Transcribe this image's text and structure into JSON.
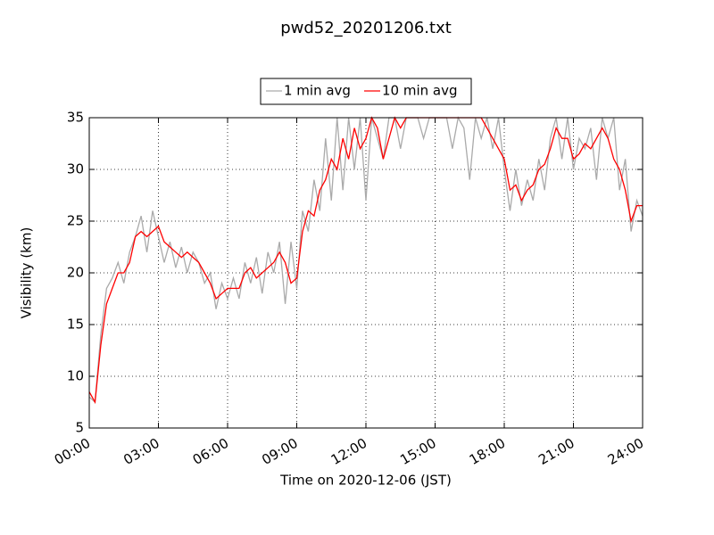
{
  "chart_data": {
    "type": "line",
    "title": "pwd52_20201206.txt",
    "x_label": "Time on 2020-12-06 (JST)",
    "y_label": "Visibility (km)",
    "x": [
      0,
      0.25,
      0.5,
      0.75,
      1,
      1.25,
      1.5,
      1.75,
      2,
      2.25,
      2.5,
      2.75,
      3,
      3.25,
      3.5,
      3.75,
      4,
      4.25,
      4.5,
      4.75,
      5,
      5.25,
      5.5,
      5.75,
      6,
      6.25,
      6.5,
      6.75,
      7,
      7.25,
      7.5,
      7.75,
      8,
      8.25,
      8.5,
      8.75,
      9,
      9.25,
      9.5,
      9.75,
      10,
      10.25,
      10.5,
      10.75,
      11,
      11.25,
      11.5,
      11.75,
      12,
      12.25,
      12.5,
      12.75,
      13,
      13.25,
      13.5,
      13.75,
      14,
      14.25,
      14.5,
      14.75,
      15,
      15.25,
      15.5,
      15.75,
      16,
      16.25,
      16.5,
      16.75,
      17,
      17.25,
      17.5,
      17.75,
      18,
      18.25,
      18.5,
      18.75,
      19,
      19.25,
      19.5,
      19.75,
      20,
      20.25,
      20.5,
      20.75,
      21,
      21.25,
      21.5,
      21.75,
      22,
      22.25,
      22.5,
      22.75,
      23,
      23.25,
      23.5,
      23.75,
      24
    ],
    "series": [
      {
        "name": "1 min avg",
        "color": "#aaaaaa",
        "values": [
          8,
          7.5,
          14,
          18.5,
          19.5,
          21,
          19,
          22,
          23.5,
          25.5,
          22,
          26,
          23.5,
          21,
          23,
          20.5,
          22.5,
          20,
          22,
          21,
          19,
          20,
          16.5,
          19,
          17.5,
          19.5,
          17.5,
          21,
          19,
          21.5,
          18,
          22,
          20,
          23,
          17,
          23,
          18.5,
          26,
          24,
          29,
          26,
          33,
          27,
          35,
          28,
          35,
          30,
          35,
          27,
          35,
          33,
          31,
          35,
          35,
          32,
          35,
          35,
          35,
          33,
          35,
          35,
          35,
          35,
          32,
          35,
          34,
          29,
          35,
          33,
          35,
          32,
          35,
          30,
          26,
          30,
          26.5,
          29,
          27,
          31,
          28,
          33,
          35,
          31,
          35,
          30,
          33,
          32,
          34,
          29,
          35,
          33,
          35,
          28,
          31,
          24,
          27,
          25.5
        ]
      },
      {
        "name": "10 min avg",
        "color": "#ff0000",
        "values": [
          8.5,
          7.5,
          13,
          17,
          18.5,
          20,
          20,
          21,
          23.5,
          24,
          23.5,
          24,
          24.5,
          23,
          22.5,
          22,
          21.5,
          22,
          21.5,
          21,
          20,
          19,
          17.5,
          18,
          18.5,
          18.5,
          18.5,
          20,
          20.5,
          19.5,
          20,
          20.5,
          21,
          22,
          21,
          19,
          19.5,
          24,
          26,
          25.5,
          28,
          29,
          31,
          30,
          33,
          31,
          34,
          32,
          33,
          35,
          34,
          31,
          33,
          35,
          34,
          35,
          35,
          35,
          35,
          35,
          35,
          35,
          35,
          35,
          35,
          35,
          35,
          35,
          35,
          34,
          33,
          32,
          31,
          28,
          28.5,
          27,
          28,
          28.5,
          30,
          30.5,
          32,
          34,
          33,
          33,
          31,
          31.5,
          32.5,
          32,
          33,
          34,
          33,
          31,
          30,
          28,
          25,
          26.5,
          26.5
        ]
      }
    ],
    "xlim": [
      0,
      24
    ],
    "xticks": [
      {
        "value": 0,
        "label": "00:00"
      },
      {
        "value": 3,
        "label": "03:00"
      },
      {
        "value": 6,
        "label": "06:00"
      },
      {
        "value": 9,
        "label": "09:00"
      },
      {
        "value": 12,
        "label": "12:00"
      },
      {
        "value": 15,
        "label": "15:00"
      },
      {
        "value": 18,
        "label": "18:00"
      },
      {
        "value": 21,
        "label": "21:00"
      },
      {
        "value": 24,
        "label": "24:00"
      }
    ],
    "ylim": [
      5,
      35
    ],
    "yticks": [
      5,
      10,
      15,
      20,
      25,
      30,
      35
    ],
    "grid": true,
    "legend": "top"
  }
}
